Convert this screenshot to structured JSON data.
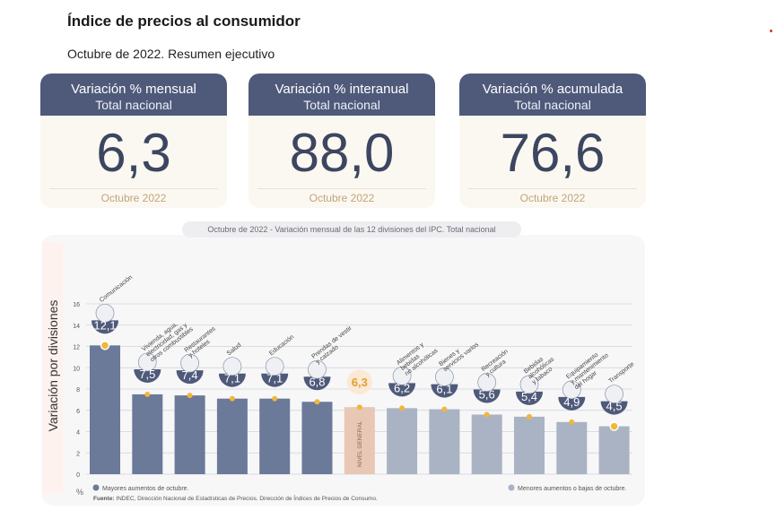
{
  "header": {
    "title": "Índice de precios al consumidor",
    "subtitle": "Octubre de 2022. Resumen ejecutivo"
  },
  "cards": [
    {
      "title": "Variación % mensual",
      "subtitle": "Total nacional",
      "value": "6,3",
      "date": "Octubre 2022"
    },
    {
      "title": "Variación % interanual",
      "subtitle": "Total nacional",
      "value": "88,0",
      "date": "Octubre 2022"
    },
    {
      "title": "Variación % acumulada",
      "subtitle": "Total nacional",
      "value": "76,6",
      "date": "Octubre 2022"
    }
  ],
  "chart_data": {
    "type": "bar",
    "title_prefix": "Octubre de 2022",
    "title_rest": " - Variación mensual de las 12 divisiones del IPC. Total nacional",
    "ylabel": "Variación por divisiones",
    "yunit": "%",
    "ylim": [
      0,
      16
    ],
    "yticks": [
      0,
      2,
      4,
      6,
      8,
      10,
      12,
      14,
      16
    ],
    "categories": [
      {
        "label": [
          "Comunicación"
        ],
        "value": 12.1,
        "display": "12,1",
        "group": "mayor"
      },
      {
        "label": [
          "Vivienda, agua,",
          "electricidad, gas y",
          "otros combustibles"
        ],
        "value": 7.5,
        "display": "7,5",
        "group": "mayor"
      },
      {
        "label": [
          "Restaurantes",
          "y hoteles"
        ],
        "value": 7.4,
        "display": "7,4",
        "group": "mayor"
      },
      {
        "label": [
          "Salud"
        ],
        "value": 7.1,
        "display": "7,1",
        "group": "mayor"
      },
      {
        "label": [
          "Educación"
        ],
        "value": 7.1,
        "display": "7,1",
        "group": "mayor"
      },
      {
        "label": [
          "Prendas de vestir",
          "y calzado"
        ],
        "value": 6.8,
        "display": "6,8",
        "group": "mayor"
      },
      {
        "label": [],
        "value": 6.3,
        "display": "6,3",
        "group": "general",
        "bar_text": "NIVEL GENERAL"
      },
      {
        "label": [
          "Alimentos y",
          "bebidas",
          "no alcohólicas"
        ],
        "value": 6.2,
        "display": "6,2",
        "group": "menor"
      },
      {
        "label": [
          "Bienes y",
          "servicios varios"
        ],
        "value": 6.1,
        "display": "6,1",
        "group": "menor"
      },
      {
        "label": [
          "Recreación",
          "y cultura"
        ],
        "value": 5.6,
        "display": "5,6",
        "group": "menor"
      },
      {
        "label": [
          "Bebidas",
          "alcohólicas",
          "y tabaco"
        ],
        "value": 5.4,
        "display": "5,4",
        "group": "menor"
      },
      {
        "label": [
          "Equipamiento",
          "y mantenimiento",
          "del hogar"
        ],
        "value": 4.9,
        "display": "4,9",
        "group": "menor"
      },
      {
        "label": [
          "Transporte"
        ],
        "value": 4.5,
        "display": "4,5",
        "group": "menor"
      }
    ],
    "legend": {
      "mayor": "Mayores aumentos de octubre.",
      "menor": "Menores aumentos o bajas de octubre."
    },
    "source_label": "Fuente:",
    "source_text": " INDEC, Dirección Nacional de Estadísticas de Precios. Dirección de Índices de Precios de Consumo.",
    "colors": {
      "mayor": "#6b7a99",
      "menor": "#a9b3c3",
      "general": "#e8c7b5",
      "badge": "#4f5a7a",
      "dot": "#f0b73a",
      "grid": "#cfd3dc"
    }
  }
}
